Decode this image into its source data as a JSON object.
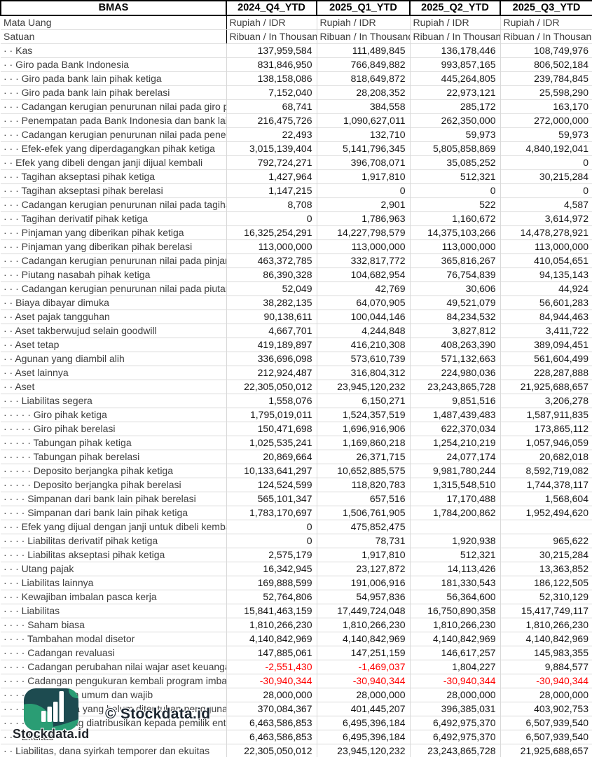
{
  "table": {
    "ticker": "BMAS",
    "columns": [
      "2024_Q4_YTD",
      "2025_Q1_YTD",
      "2025_Q2_YTD",
      "2025_Q3_YTD"
    ],
    "meta_rows": [
      {
        "label": "Mata Uang",
        "values": [
          "Rupiah / IDR",
          "Rupiah / IDR",
          "Rupiah / IDR",
          "Rupiah / IDR"
        ]
      },
      {
        "label": "Satuan",
        "values": [
          "Ribuan / In Thousand",
          "Ribuan / In Thousand",
          "Ribuan / In Thousand",
          "Ribuan / In Thousand"
        ]
      }
    ],
    "rows": [
      {
        "label": "· · Kas",
        "values": [
          "137,959,584",
          "111,489,845",
          "136,178,446",
          "108,749,976"
        ]
      },
      {
        "label": "· · Giro pada Bank Indonesia",
        "values": [
          "831,846,950",
          "766,849,882",
          "993,857,165",
          "806,502,184"
        ]
      },
      {
        "label": "· · · Giro pada bank lain pihak ketiga",
        "values": [
          "138,158,086",
          "818,649,872",
          "445,264,805",
          "239,784,845"
        ]
      },
      {
        "label": "· · · Giro pada bank lain pihak berelasi",
        "values": [
          "7,152,040",
          "28,208,352",
          "22,973,121",
          "25,598,290"
        ]
      },
      {
        "label": "· · · Cadangan kerugian penurunan nilai pada giro pada bank lain",
        "values": [
          "68,741",
          "384,558",
          "285,172",
          "163,170"
        ]
      },
      {
        "label": "· · · Penempatan pada Bank Indonesia dan bank lain",
        "values": [
          "216,475,726",
          "1,090,627,011",
          "262,350,000",
          "272,000,000"
        ]
      },
      {
        "label": "· · · Cadangan kerugian penurunan nilai pada penempatan",
        "values": [
          "22,493",
          "132,710",
          "59,973",
          "59,973"
        ]
      },
      {
        "label": "· · · Efek-efek yang diperdagangkan pihak ketiga",
        "values": [
          "3,015,139,404",
          "5,141,796,345",
          "5,805,858,869",
          "4,840,192,041"
        ]
      },
      {
        "label": "· · Efek yang dibeli dengan janji dijual kembali",
        "values": [
          "792,724,271",
          "396,708,071",
          "35,085,252",
          "0"
        ]
      },
      {
        "label": "· · · Tagihan akseptasi pihak ketiga",
        "values": [
          "1,427,964",
          "1,917,810",
          "512,321",
          "30,215,284"
        ]
      },
      {
        "label": "· · · Tagihan akseptasi pihak berelasi",
        "values": [
          "1,147,215",
          "0",
          "0",
          "0"
        ]
      },
      {
        "label": "· · · Cadangan kerugian penurunan nilai pada tagihan akseptasi",
        "values": [
          "8,708",
          "2,901",
          "522",
          "4,587"
        ]
      },
      {
        "label": "· · · Tagihan derivatif pihak ketiga",
        "values": [
          "0",
          "1,786,963",
          "1,160,672",
          "3,614,972"
        ]
      },
      {
        "label": "· · · Pinjaman yang diberikan pihak ketiga",
        "values": [
          "16,325,254,291",
          "14,227,798,579",
          "14,375,103,266",
          "14,478,278,921"
        ]
      },
      {
        "label": "· · · Pinjaman yang diberikan pihak berelasi",
        "values": [
          "113,000,000",
          "113,000,000",
          "113,000,000",
          "113,000,000"
        ]
      },
      {
        "label": "· · · Cadangan kerugian penurunan nilai pada pinjaman yang diberikan",
        "values": [
          "463,372,785",
          "332,817,772",
          "365,816,267",
          "410,054,651"
        ]
      },
      {
        "label": "· · · Piutang nasabah pihak ketiga",
        "values": [
          "86,390,328",
          "104,682,954",
          "76,754,839",
          "94,135,143"
        ]
      },
      {
        "label": "· · · Cadangan kerugian penurunan nilai pada piutang nasabah",
        "values": [
          "52,049",
          "42,769",
          "30,606",
          "44,924"
        ]
      },
      {
        "label": "· · Biaya dibayar dimuka",
        "values": [
          "38,282,135",
          "64,070,905",
          "49,521,079",
          "56,601,283"
        ]
      },
      {
        "label": "· · Aset pajak tangguhan",
        "values": [
          "90,138,611",
          "100,044,146",
          "84,234,532",
          "84,944,463"
        ]
      },
      {
        "label": "· · Aset takberwujud selain goodwill",
        "values": [
          "4,667,701",
          "4,244,848",
          "3,827,812",
          "3,411,722"
        ]
      },
      {
        "label": "· · Aset tetap",
        "values": [
          "419,189,897",
          "416,210,308",
          "408,263,390",
          "389,094,451"
        ]
      },
      {
        "label": "· · Agunan yang diambil alih",
        "values": [
          "336,696,098",
          "573,610,739",
          "571,132,663",
          "561,604,499"
        ]
      },
      {
        "label": "· · Aset lainnya",
        "values": [
          "212,924,487",
          "316,804,312",
          "224,980,036",
          "228,287,888"
        ]
      },
      {
        "label": "· · Aset",
        "values": [
          "22,305,050,012",
          "23,945,120,232",
          "23,243,865,728",
          "21,925,688,657"
        ]
      },
      {
        "label": "· · · Liabilitas segera",
        "values": [
          "1,558,076",
          "6,150,271",
          "9,851,516",
          "3,206,278"
        ]
      },
      {
        "label": "· · · · · Giro pihak ketiga",
        "values": [
          "1,795,019,011",
          "1,524,357,519",
          "1,487,439,483",
          "1,587,911,835"
        ]
      },
      {
        "label": "· · · · · Giro pihak berelasi",
        "values": [
          "150,471,698",
          "1,696,916,906",
          "622,370,034",
          "173,865,112"
        ]
      },
      {
        "label": "· · · · · Tabungan pihak ketiga",
        "values": [
          "1,025,535,241",
          "1,169,860,218",
          "1,254,210,219",
          "1,057,946,059"
        ]
      },
      {
        "label": "· · · · · Tabungan pihak berelasi",
        "values": [
          "20,869,664",
          "26,371,715",
          "24,077,174",
          "20,682,018"
        ]
      },
      {
        "label": "· · · · · Deposito berjangka pihak ketiga",
        "values": [
          "10,133,641,297",
          "10,652,885,575",
          "9,981,780,244",
          "8,592,719,082"
        ]
      },
      {
        "label": "· · · · · Deposito berjangka pihak berelasi",
        "values": [
          "124,524,599",
          "118,820,783",
          "1,315,548,510",
          "1,744,378,117"
        ]
      },
      {
        "label": "· · · · Simpanan dari bank lain pihak berelasi",
        "values": [
          "565,101,347",
          "657,516",
          "17,170,488",
          "1,568,604"
        ]
      },
      {
        "label": "· · · · Simpanan dari bank lain pihak ketiga",
        "values": [
          "1,783,170,697",
          "1,506,761,905",
          "1,784,200,862",
          "1,952,494,620"
        ]
      },
      {
        "label": "· · · Efek yang dijual dengan janji untuk dibeli kembali",
        "values": [
          "0",
          "475,852,475",
          "",
          ""
        ]
      },
      {
        "label": "· · · · Liabilitas derivatif pihak ketiga",
        "values": [
          "0",
          "78,731",
          "1,920,938",
          "965,622"
        ]
      },
      {
        "label": "· · · · Liabilitas akseptasi pihak ketiga",
        "values": [
          "2,575,179",
          "1,917,810",
          "512,321",
          "30,215,284"
        ]
      },
      {
        "label": "· · · Utang pajak",
        "values": [
          "16,342,945",
          "23,127,872",
          "14,113,426",
          "13,363,852"
        ]
      },
      {
        "label": "· · · Liabilitas lainnya",
        "values": [
          "169,888,599",
          "191,006,916",
          "181,330,543",
          "186,122,505"
        ]
      },
      {
        "label": "· · · Kewajiban imbalan pasca kerja",
        "values": [
          "52,764,806",
          "54,957,836",
          "56,364,600",
          "52,310,129"
        ]
      },
      {
        "label": "· · · Liabilitas",
        "values": [
          "15,841,463,159",
          "17,449,724,048",
          "16,750,890,358",
          "15,417,749,117"
        ]
      },
      {
        "label": "· · · · Saham biasa",
        "values": [
          "1,810,266,230",
          "1,810,266,230",
          "1,810,266,230",
          "1,810,266,230"
        ]
      },
      {
        "label": "· · · · Tambahan modal disetor",
        "values": [
          "4,140,842,969",
          "4,140,842,969",
          "4,140,842,969",
          "4,140,842,969"
        ]
      },
      {
        "label": "· · · · Cadangan revaluasi",
        "values": [
          "147,885,061",
          "147,251,159",
          "146,617,257",
          "145,983,355"
        ]
      },
      {
        "label": "· · · · Cadangan perubahan nilai wajar aset keuangan",
        "values": [
          "-2,551,430",
          "-1,469,037",
          "1,804,227",
          "9,884,577"
        ]
      },
      {
        "label": "· · · · Cadangan pengukuran kembali program imbalan pasti",
        "values": [
          "-30,940,344",
          "-30,940,344",
          "-30,940,344",
          "-30,940,344"
        ]
      },
      {
        "label": "· · · · · Cadangan umum dan wajib",
        "values": [
          "28,000,000",
          "28,000,000",
          "28,000,000",
          "28,000,000"
        ]
      },
      {
        "label": "· · · · · Saldo laba yang belum ditentukan penggunaannya",
        "values": [
          "370,084,367",
          "401,445,207",
          "396,385,031",
          "403,902,753"
        ]
      },
      {
        "label": "· · · · Ekuitas yang diatribusikan kepada pemilik entitas",
        "values": [
          "6,463,586,853",
          "6,495,396,184",
          "6,492,975,370",
          "6,507,939,540"
        ]
      },
      {
        "label": "· · · Ekuitas",
        "values": [
          "6,463,586,853",
          "6,495,396,184",
          "6,492,975,370",
          "6,507,939,540"
        ]
      },
      {
        "label": "· · Liabilitas, dana syirkah temporer dan ekuitas",
        "values": [
          "22,305,050,012",
          "23,945,120,232",
          "23,243,865,728",
          "21,925,688,657"
        ]
      }
    ]
  },
  "watermark": {
    "copyright": "© Stockdata.id",
    "brand": "Stockdata.id",
    "logo_icon": "bar-chart-icon",
    "logo_dark_color": "#1d4b50",
    "logo_green_color": "#2a9d74"
  },
  "colors": {
    "negative_value": "#ff0000",
    "gridline": "#d9d9d9",
    "header_border": "#000000",
    "label_text": "#3f3f3f",
    "number_text": "#151515"
  }
}
